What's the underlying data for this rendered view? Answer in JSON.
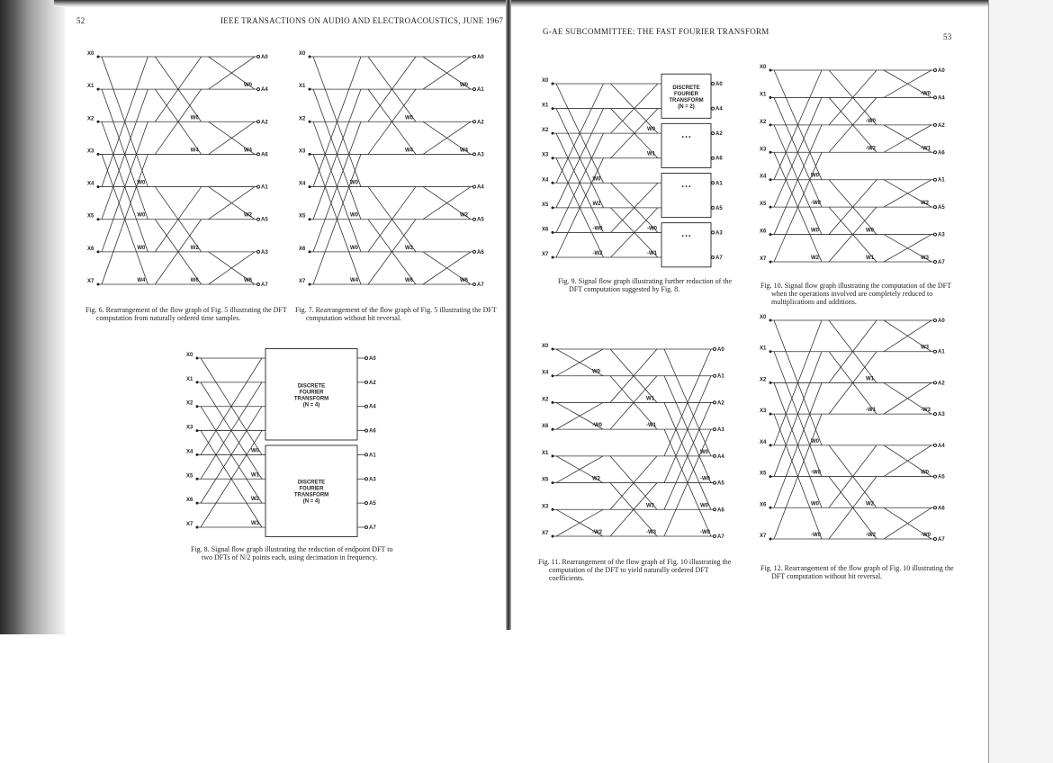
{
  "left_page": {
    "page_number": "52",
    "running_head": "IEEE TRANSACTIONS ON AUDIO AND ELECTROACOUSTICS, JUNE 1967"
  },
  "right_page": {
    "page_number": "53",
    "running_head": "G-AE SUBCOMMITTEE: THE FAST FOURIER TRANSFORM"
  },
  "figures": {
    "fig6": {
      "caption": "Fig. 6.  Rearrangement of the flow graph of Fig. 5 illustrating the DFT computation from naturally ordered time samples.",
      "inputs": [
        "X0",
        "X1",
        "X2",
        "X3",
        "X4",
        "X5",
        "X6",
        "X7"
      ],
      "outputs": [
        "A0",
        "A4",
        "A2",
        "A6",
        "A1",
        "A5",
        "A3",
        "A7"
      ],
      "weights": [
        "W0",
        "W0",
        "W0",
        "W4",
        "W0",
        "W4",
        "W2",
        "W6",
        "W0",
        "W4",
        "W2",
        "W6",
        "W1",
        "W5",
        "W3",
        "W7"
      ]
    },
    "fig7": {
      "caption": "Fig. 7.  Rearrangement of the flow graph of Fig. 5 illustrating the DFT computation without bit reversal.",
      "inputs": [
        "X0",
        "X1",
        "X2",
        "X3",
        "X4",
        "X5",
        "X6",
        "X7"
      ],
      "outputs": [
        "A0",
        "A1",
        "A2",
        "A3",
        "A4",
        "A5",
        "A6",
        "A7"
      ],
      "weights": [
        "W0",
        "W0",
        "W0",
        "W4",
        "W0",
        "W4",
        "W2",
        "W6",
        "W0",
        "W4",
        "W2",
        "W6",
        "W1",
        "W5",
        "W3",
        "W7"
      ]
    },
    "fig8": {
      "caption": "Fig. 8.  Signal flow graph illustrating the reduction of endpoint DFT to two DFTs of N/2 points each, using decimation in frequency.",
      "inputs": [
        "X0",
        "X1",
        "X2",
        "X3",
        "X4",
        "X5",
        "X6",
        "X7"
      ],
      "outputs": [
        "A0",
        "A2",
        "A4",
        "A6",
        "A1",
        "A3",
        "A5",
        "A7"
      ],
      "box_label": "DISCRETE FOURIER TRANSFORM (N = 4)",
      "weights": [
        "W0",
        "W1",
        "W2",
        "W3",
        "-W0",
        "-W1",
        "-W2",
        "-W3"
      ]
    },
    "fig9": {
      "caption": "Fig. 9.  Signal flow graph illustrating further reduction of the DFT computation suggested by Fig. 8.",
      "inputs": [
        "X0",
        "X1",
        "X2",
        "X3",
        "X4",
        "X5",
        "X6",
        "X7"
      ],
      "outputs": [
        "A0",
        "A4",
        "A2",
        "A6",
        "A1",
        "A5",
        "A3",
        "A7"
      ],
      "box_label": "DISCRETE FOURIER TRANSFORM (N = 2)",
      "box_ellipsis": "• • •",
      "weights": [
        "W0",
        "W2",
        "-W0",
        "-W2",
        "W0",
        "W1",
        "-W0",
        "-W1",
        "W2",
        "W3",
        "-W2",
        "-W3"
      ]
    },
    "fig10": {
      "caption": "Fig. 10.  Signal flow graph illustrating the computation of the DFT when the operations involved are completely reduced to multiplications and additions.",
      "inputs": [
        "X0",
        "X1",
        "X2",
        "X3",
        "X4",
        "X5",
        "X6",
        "X7"
      ],
      "outputs": [
        "A0",
        "A4",
        "A2",
        "A6",
        "A1",
        "A5",
        "A3",
        "A7"
      ],
      "weights": [
        "W0",
        "-W0",
        "W0",
        "W2",
        "-W0",
        "-W2",
        "W0",
        "W1",
        "-W0",
        "-W1",
        "W2",
        "W3",
        "-W2",
        "-W3"
      ]
    },
    "fig11": {
      "caption": "Fig. 11.  Rearrangement of the flow graph of Fig. 10 illustrating the computation of the DFT to yield naturally ordered DFT coefficients.",
      "inputs": [
        "X0",
        "X4",
        "X2",
        "X6",
        "X1",
        "X5",
        "X3",
        "X7"
      ],
      "outputs": [
        "A0",
        "A1",
        "A2",
        "A3",
        "A4",
        "A5",
        "A6",
        "A7"
      ],
      "weights": [
        "W0",
        "-W0",
        "W2",
        "-W2",
        "W1",
        "-W1",
        "W3",
        "-W3",
        "W0",
        "-W0",
        "W0",
        "-W0"
      ]
    },
    "fig12": {
      "caption": "Fig. 12.  Rearrangement of the flow graph of Fig. 10 illustrating the DFT computation without bit reversal.",
      "inputs": [
        "X0",
        "X1",
        "X2",
        "X3",
        "X4",
        "X5",
        "X6",
        "X7"
      ],
      "outputs": [
        "A0",
        "A1",
        "A2",
        "A3",
        "A4",
        "A5",
        "A6",
        "A7"
      ],
      "weights": [
        "W0",
        "-W0",
        "W0",
        "-W0",
        "W1",
        "-W1",
        "W2",
        "-W2",
        "W3",
        "-W3",
        "W0",
        "-W0"
      ]
    }
  }
}
